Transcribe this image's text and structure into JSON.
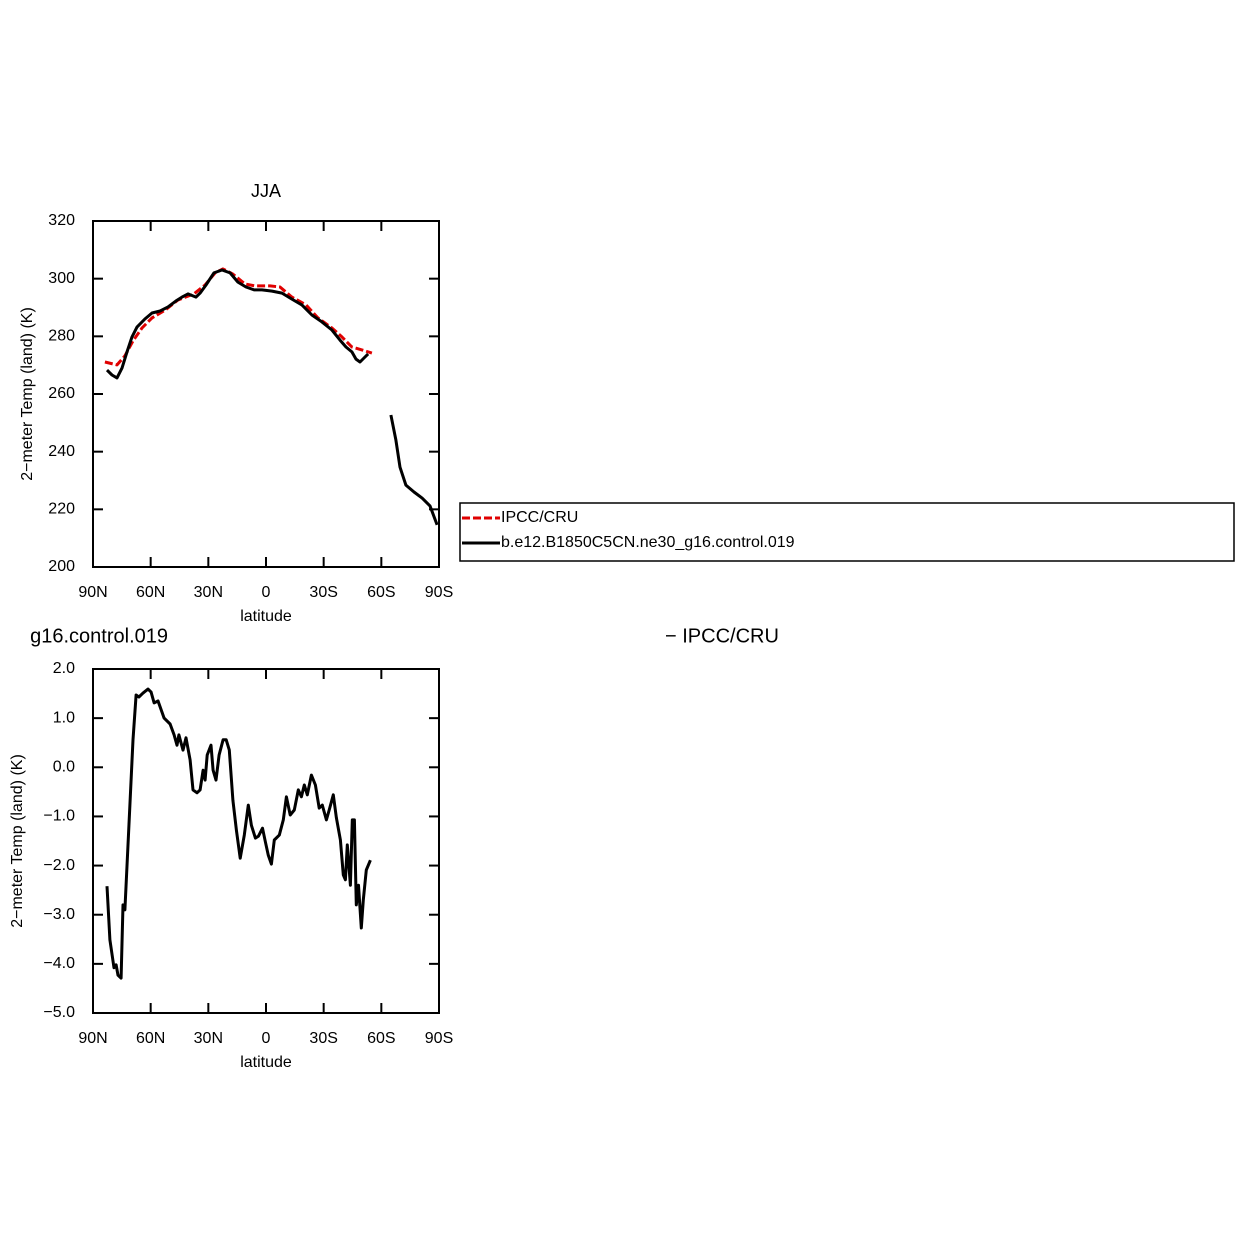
{
  "chart_data": [
    {
      "type": "line",
      "title": "JJA",
      "xlabel": "latitude",
      "ylabel": "2−meter Temp (land) (K)",
      "xlim": [
        90,
        -90
      ],
      "xticks": [
        {
          "value": 90,
          "label": "90N"
        },
        {
          "value": 60,
          "label": "60N"
        },
        {
          "value": 30,
          "label": "30N"
        },
        0,
        {
          "value": -30,
          "label": "30S"
        },
        {
          "value": -60,
          "label": "60S"
        },
        {
          "value": -90,
          "label": "90S"
        }
      ],
      "ylim": [
        200,
        320
      ],
      "yticks": [
        200,
        220,
        240,
        260,
        280,
        300,
        320
      ],
      "series": [
        {
          "name": "IPCC/CRU",
          "color": "#e00000",
          "dash": true,
          "x": [
            83.8,
            77.5,
            73.4,
            69.2,
            64.5,
            59.3,
            52.5,
            45.8,
            37.5,
            31.7,
            26.5,
            22.4,
            17.2,
            11.0,
            5.7,
            -2.1,
            -7.3,
            -13.5,
            -20.8,
            -27.0,
            -34.3,
            -39.5,
            -44.7,
            -49.9,
            -55.1
          ],
          "values": [
            271.1,
            270.1,
            273.2,
            278.4,
            282.9,
            286.4,
            289.1,
            292.6,
            294.7,
            297.8,
            302.0,
            303.4,
            301.6,
            298.2,
            297.5,
            297.5,
            297.1,
            293.6,
            290.9,
            286.4,
            282.9,
            279.8,
            276.3,
            275.3,
            274.2
          ]
        },
        {
          "name": "b.e12.B1850C5CN.ne30_g16.control.019",
          "color": "#000000",
          "dash": false,
          "x": [
            82.7,
            80.1,
            77.5,
            74.9,
            72.3,
            69.7,
            67.1,
            63.0,
            59.3,
            55.1,
            51.0,
            46.8,
            43.7,
            40.6,
            36.4,
            34.3,
            31.2,
            27.1,
            22.9,
            18.7,
            14.6,
            10.4,
            6.2,
            2.1,
            -3.1,
            -8.3,
            -13.5,
            -18.7,
            -23.9,
            -29.1,
            -34.3,
            -38.5,
            -41.6,
            -44.7,
            -46.8,
            -48.9,
            -51.0,
            -53.1,
            -60,
            -65.0,
            -67.6,
            -69.7,
            -72.8,
            -77.0,
            -81.2,
            -85.3,
            -89.0
          ],
          "values": [
            268.3,
            266.6,
            265.6,
            269.0,
            274.6,
            279.8,
            283.2,
            286.0,
            288.1,
            288.8,
            290.2,
            292.3,
            293.6,
            294.7,
            293.6,
            295.0,
            297.8,
            302.0,
            303.0,
            302.0,
            298.8,
            297.1,
            296.1,
            296.1,
            295.7,
            295.0,
            292.9,
            290.9,
            287.4,
            285.0,
            282.2,
            278.7,
            276.3,
            274.6,
            272.1,
            271.1,
            272.5,
            273.9,
            null,
            252.7,
            244.0,
            234.6,
            228.4,
            226.0,
            223.9,
            221.2,
            214.6
          ]
        }
      ]
    },
    {
      "type": "line",
      "title_left": "g16.control.019",
      "title_right": "− IPCC/CRU",
      "xlabel": "latitude",
      "ylabel": "2−meter Temp (land) (K)",
      "xlim": [
        90,
        -90
      ],
      "xticks": [
        {
          "value": 90,
          "label": "90N"
        },
        {
          "value": 60,
          "label": "60N"
        },
        {
          "value": 30,
          "label": "30N"
        },
        0,
        {
          "value": -30,
          "label": "30S"
        },
        {
          "value": -60,
          "label": "60S"
        },
        {
          "value": -90,
          "label": "90S"
        }
      ],
      "ylim": [
        -5,
        2
      ],
      "yticks": [
        {
          "value": -5,
          "label": "−5.0"
        },
        {
          "value": -4,
          "label": "−4.0"
        },
        {
          "value": -3,
          "label": "−3.0"
        },
        {
          "value": -2,
          "label": "−2.0"
        },
        {
          "value": -1,
          "label": "−1.0"
        },
        {
          "value": 0,
          "label": "0.0"
        },
        {
          "value": 1,
          "label": "1.0"
        },
        {
          "value": 2,
          "label": "2.0"
        }
      ],
      "series": [
        {
          "color": "#000000",
          "dash": false,
          "x": [
            82.7,
            81.2,
            79.1,
            78.0,
            77.0,
            75.4,
            74.4,
            73.4,
            70.8,
            69.2,
            67.6,
            66.1,
            64.0,
            61.4,
            59.8,
            58.2,
            56.2,
            53.0,
            49.9,
            47.8,
            46.3,
            45.3,
            43.2,
            41.6,
            39.5,
            38.0,
            35.9,
            34.3,
            32.7,
            31.7,
            30.6,
            28.6,
            27.5,
            26.0,
            24.4,
            22.3,
            20.7,
            19.1,
            17.2,
            15.4,
            13.4,
            11.3,
            9.2,
            7.6,
            5.5,
            3.9,
            1.8,
            0.3,
            -1.2,
            -2.8,
            -4.3,
            -6.9,
            -9.0,
            -10.6,
            -12.6,
            -14.7,
            -16.8,
            -18.4,
            -19.9,
            -21.5,
            -23.6,
            -25.7,
            -27.7,
            -29.3,
            -31.4,
            -32.9,
            -35.0,
            -36.6,
            -38.7,
            -40.2,
            -41.3,
            -42.3,
            -43.9,
            -44.9,
            -46.0,
            -47.0,
            -48.1,
            -49.6,
            -50.6,
            -52.2,
            -54.3
          ],
          "values": [
            -2.42,
            -3.51,
            -4.08,
            -4.02,
            -4.23,
            -4.29,
            -2.8,
            -2.9,
            -0.77,
            0.56,
            1.47,
            1.43,
            1.51,
            1.59,
            1.53,
            1.31,
            1.35,
            1.0,
            0.88,
            0.66,
            0.45,
            0.66,
            0.35,
            0.6,
            0.15,
            -0.46,
            -0.52,
            -0.46,
            -0.06,
            -0.26,
            0.25,
            0.45,
            -0.06,
            -0.26,
            0.25,
            0.56,
            0.56,
            0.35,
            -0.67,
            -1.28,
            -1.85,
            -1.38,
            -0.77,
            -1.18,
            -1.44,
            -1.4,
            -1.24,
            -1.52,
            -1.79,
            -1.97,
            -1.48,
            -1.38,
            -1.07,
            -0.6,
            -0.97,
            -0.87,
            -0.46,
            -0.6,
            -0.36,
            -0.56,
            -0.16,
            -0.36,
            -0.83,
            -0.77,
            -1.07,
            -0.87,
            -0.56,
            -1.03,
            -1.48,
            -2.19,
            -2.29,
            -1.58,
            -2.4,
            -1.07,
            -1.07,
            -2.8,
            -2.4,
            -3.27,
            -2.7,
            -2.09,
            -1.89
          ]
        }
      ]
    }
  ]
}
